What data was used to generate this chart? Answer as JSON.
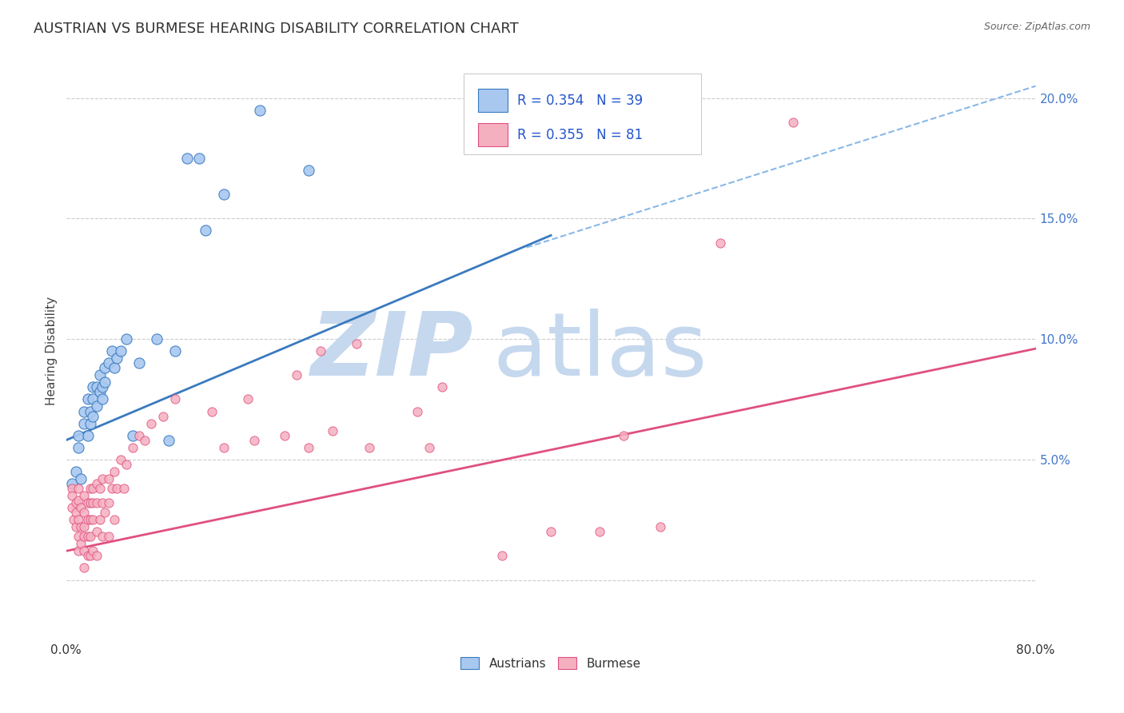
{
  "title": "AUSTRIAN VS BURMESE HEARING DISABILITY CORRELATION CHART",
  "source": "Source: ZipAtlas.com",
  "ylabel": "Hearing Disability",
  "xlabel": "",
  "xlim": [
    0.0,
    0.8
  ],
  "ylim": [
    -0.025,
    0.215
  ],
  "xticks": [
    0.0,
    0.1,
    0.2,
    0.3,
    0.4,
    0.5,
    0.6,
    0.7,
    0.8
  ],
  "xticklabels": [
    "0.0%",
    "",
    "",
    "",
    "",
    "",
    "",
    "",
    "80.0%"
  ],
  "yticks_right": [
    0.0,
    0.05,
    0.1,
    0.15,
    0.2
  ],
  "ytick_right_labels": [
    "",
    "5.0%",
    "10.0%",
    "15.0%",
    "20.0%"
  ],
  "background_color": "#ffffff",
  "grid_color": "#cccccc",
  "watermark_zip": "ZIP",
  "watermark_atlas": "atlas",
  "watermark_color_zip": "#c5d8ee",
  "watermark_color_atlas": "#c5d8ee",
  "legend_R1": "R = 0.354",
  "legend_N1": "N = 39",
  "legend_R2": "R = 0.355",
  "legend_N2": "N = 81",
  "legend_label1": "Austrians",
  "legend_label2": "Burmese",
  "austrian_color": "#a8c8f0",
  "burmese_color": "#f5b0c0",
  "austrian_line_color": "#3a7abf",
  "burmese_line_color": "#e05080",
  "dashed_line_color": "#8ab8e8",
  "title_fontsize": 13,
  "axis_fontsize": 11,
  "tick_fontsize": 11,
  "legend_fontsize": 13,
  "austrian_scatter_x": [
    0.005,
    0.008,
    0.01,
    0.01,
    0.012,
    0.015,
    0.015,
    0.018,
    0.018,
    0.02,
    0.02,
    0.022,
    0.022,
    0.022,
    0.025,
    0.025,
    0.028,
    0.028,
    0.03,
    0.03,
    0.032,
    0.032,
    0.035,
    0.038,
    0.04,
    0.042,
    0.045,
    0.05,
    0.055,
    0.06,
    0.075,
    0.085,
    0.09,
    0.1,
    0.11,
    0.115,
    0.13,
    0.16,
    0.2
  ],
  "austrian_scatter_y": [
    0.04,
    0.045,
    0.055,
    0.06,
    0.042,
    0.065,
    0.07,
    0.06,
    0.075,
    0.065,
    0.07,
    0.075,
    0.08,
    0.068,
    0.072,
    0.08,
    0.078,
    0.085,
    0.08,
    0.075,
    0.088,
    0.082,
    0.09,
    0.095,
    0.088,
    0.092,
    0.095,
    0.1,
    0.06,
    0.09,
    0.1,
    0.058,
    0.095,
    0.175,
    0.175,
    0.145,
    0.16,
    0.195,
    0.17
  ],
  "burmese_scatter_x": [
    0.005,
    0.005,
    0.005,
    0.006,
    0.008,
    0.008,
    0.008,
    0.01,
    0.01,
    0.01,
    0.01,
    0.01,
    0.012,
    0.012,
    0.012,
    0.015,
    0.015,
    0.015,
    0.015,
    0.015,
    0.015,
    0.018,
    0.018,
    0.018,
    0.018,
    0.02,
    0.02,
    0.02,
    0.02,
    0.02,
    0.022,
    0.022,
    0.022,
    0.022,
    0.025,
    0.025,
    0.025,
    0.025,
    0.028,
    0.028,
    0.03,
    0.03,
    0.03,
    0.032,
    0.035,
    0.035,
    0.035,
    0.038,
    0.04,
    0.04,
    0.042,
    0.045,
    0.048,
    0.05,
    0.055,
    0.06,
    0.065,
    0.07,
    0.08,
    0.09,
    0.12,
    0.13,
    0.15,
    0.155,
    0.18,
    0.19,
    0.2,
    0.21,
    0.22,
    0.24,
    0.25,
    0.29,
    0.3,
    0.31,
    0.36,
    0.4,
    0.44,
    0.46,
    0.49,
    0.54,
    0.6
  ],
  "burmese_scatter_y": [
    0.038,
    0.035,
    0.03,
    0.025,
    0.032,
    0.028,
    0.022,
    0.038,
    0.033,
    0.025,
    0.018,
    0.012,
    0.03,
    0.022,
    0.015,
    0.035,
    0.028,
    0.022,
    0.018,
    0.012,
    0.005,
    0.032,
    0.025,
    0.018,
    0.01,
    0.038,
    0.032,
    0.025,
    0.018,
    0.01,
    0.038,
    0.032,
    0.025,
    0.012,
    0.04,
    0.032,
    0.02,
    0.01,
    0.038,
    0.025,
    0.042,
    0.032,
    0.018,
    0.028,
    0.042,
    0.032,
    0.018,
    0.038,
    0.045,
    0.025,
    0.038,
    0.05,
    0.038,
    0.048,
    0.055,
    0.06,
    0.058,
    0.065,
    0.068,
    0.075,
    0.07,
    0.055,
    0.075,
    0.058,
    0.06,
    0.085,
    0.055,
    0.095,
    0.062,
    0.098,
    0.055,
    0.07,
    0.055,
    0.08,
    0.01,
    0.02,
    0.02,
    0.06,
    0.022,
    0.14,
    0.19
  ],
  "austrian_line_x0": 0.0,
  "austrian_line_x1": 0.4,
  "austrian_line_y0": 0.058,
  "austrian_line_y1": 0.143,
  "burmese_line_x0": 0.0,
  "burmese_line_x1": 0.8,
  "burmese_line_y0": 0.012,
  "burmese_line_y1": 0.096,
  "dashed_line_x0": 0.38,
  "dashed_line_x1": 0.8,
  "dashed_line_y0": 0.138,
  "dashed_line_y1": 0.205
}
